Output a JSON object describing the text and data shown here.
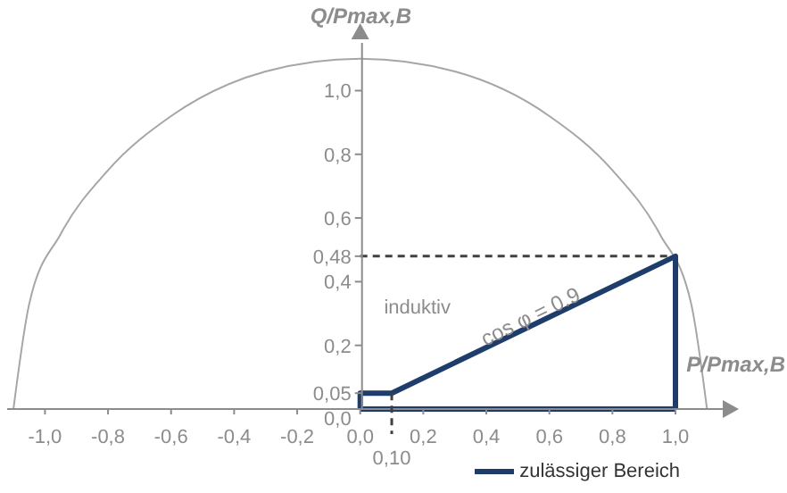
{
  "chart_data": {
    "type": "line",
    "xlabel": "P/Pmax,B",
    "ylabel": "Q/Pmax,B",
    "xlim": [
      -1.12,
      1.15
    ],
    "ylim": [
      0,
      1.15
    ],
    "xticks": [
      {
        "value": -1,
        "label": "-1,0"
      },
      {
        "value": -0.8,
        "label": "-0,8"
      },
      {
        "value": -0.6,
        "label": "-0,6"
      },
      {
        "value": -0.4,
        "label": "-0,4"
      },
      {
        "value": -0.2,
        "label": "-0,2"
      },
      {
        "value": 0,
        "label": "0,0"
      },
      {
        "value": 0.2,
        "label": "0,2"
      },
      {
        "value": 0.4,
        "label": "0,4"
      },
      {
        "value": 0.6,
        "label": "0,6"
      },
      {
        "value": 0.8,
        "label": "0,8"
      },
      {
        "value": 1,
        "label": "1,0"
      }
    ],
    "yticks": [
      {
        "value": 0,
        "label": "0,0"
      },
      {
        "value": 0.05,
        "label": "0,05"
      },
      {
        "value": 0.2,
        "label": "0,2"
      },
      {
        "value": 0.4,
        "label": "0,4"
      },
      {
        "value": 0.48,
        "label": "0,48"
      },
      {
        "value": 0.6,
        "label": "0,6"
      },
      {
        "value": 0.8,
        "label": "0,8"
      },
      {
        "value": 1,
        "label": "1,0"
      }
    ],
    "series": [
      {
        "color": "#a6a6a6",
        "x": [
          -1.1,
          -1.05,
          -0.95,
          -0.8,
          -0.6,
          -0.3,
          0,
          0.3,
          0.6,
          0.8,
          0.95,
          1.05,
          1.1
        ],
        "values": [
          0,
          0.33,
          0.55,
          0.75,
          0.92,
          1.06,
          1.1,
          1.06,
          0.92,
          0.75,
          0.55,
          0.33,
          0
        ]
      },
      {
        "name": "zulässiger Bereich",
        "color": "#1f3d6b",
        "x": [
          0,
          0,
          0.1,
          1,
          1
        ],
        "values": [
          0,
          0.05,
          0.05,
          0.48,
          0
        ]
      }
    ],
    "ref_lines": [
      {
        "axis": "y",
        "value": 0,
        "line_style": "solid",
        "color": "#1f3d6b"
      },
      {
        "axis": "y",
        "value": 0.48,
        "line_style": "dashed",
        "color": "#404040"
      },
      {
        "axis": "x",
        "value": 0.1,
        "label": "0,10",
        "line_style": "dashed",
        "color": "#404040"
      }
    ],
    "annotations": [
      "induktiv",
      "cos φ = 0.9"
    ],
    "legend": "bottom right",
    "marker": "none",
    "line_style": "solid"
  }
}
